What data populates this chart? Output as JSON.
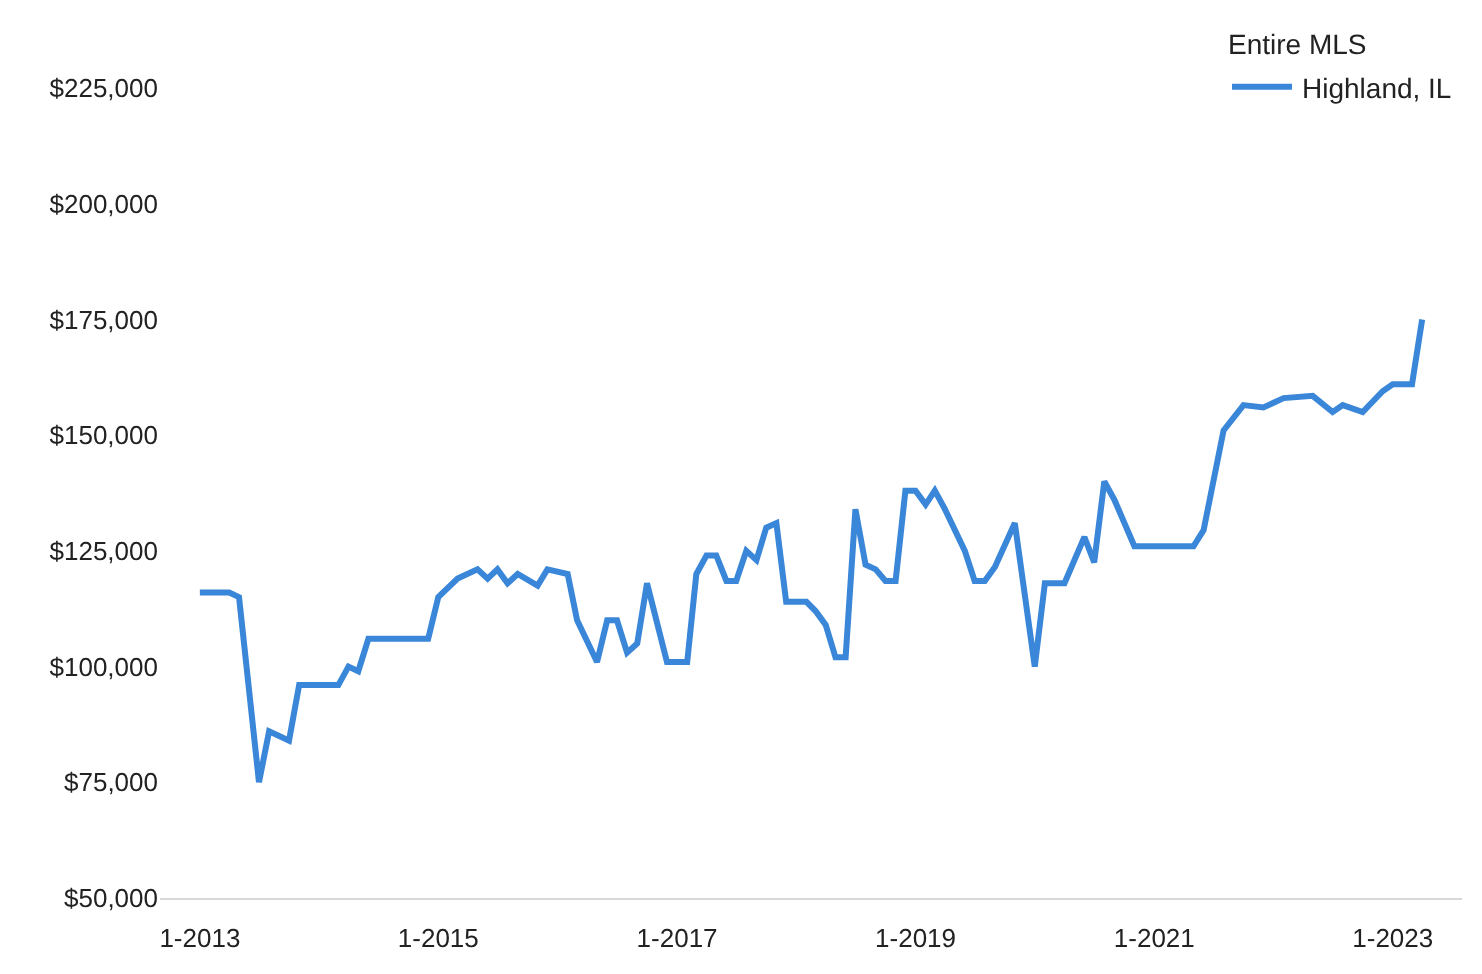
{
  "chart_data": {
    "type": "line",
    "annotations": [
      "Entire MLS"
    ],
    "x": [
      "2013-01",
      "2013-04",
      "2013-05",
      "2013-07",
      "2013-08",
      "2013-09",
      "2013-10",
      "2013-11",
      "2014-03",
      "2014-04",
      "2014-05",
      "2014-06",
      "2014-12",
      "2015-01",
      "2015-03",
      "2015-05",
      "2015-06",
      "2015-07",
      "2015-08",
      "2015-09",
      "2015-11",
      "2015-12",
      "2016-02",
      "2016-03",
      "2016-05",
      "2016-06",
      "2016-07",
      "2016-08",
      "2016-09",
      "2016-10",
      "2016-12",
      "2017-02",
      "2017-03",
      "2017-04",
      "2017-05",
      "2017-06",
      "2017-07",
      "2017-08",
      "2017-09",
      "2017-10",
      "2017-11",
      "2017-12",
      "2018-02",
      "2018-03",
      "2018-04",
      "2018-05",
      "2018-06",
      "2018-07",
      "2018-08",
      "2018-09",
      "2018-10",
      "2018-11",
      "2018-12",
      "2019-01",
      "2019-02",
      "2019-03",
      "2019-04",
      "2019-06",
      "2019-07",
      "2019-08",
      "2019-09",
      "2019-11",
      "2020-01",
      "2020-02",
      "2020-04",
      "2020-06",
      "2020-07",
      "2020-08",
      "2020-09",
      "2020-11",
      "2021-05",
      "2021-06",
      "2021-08",
      "2021-10",
      "2021-12",
      "2022-02",
      "2022-05",
      "2022-07",
      "2022-08",
      "2022-10",
      "2022-12",
      "2023-01",
      "2023-03",
      "2023-04"
    ],
    "series": [
      {
        "name": "Highland, IL",
        "color": "#3a86d8",
        "values": [
          116000,
          116000,
          115000,
          75000,
          86000,
          85000,
          84000,
          96000,
          96000,
          100000,
          99000,
          106000,
          106000,
          115000,
          119000,
          121000,
          119000,
          121000,
          118000,
          120000,
          117500,
          121000,
          120000,
          110000,
          101000,
          110000,
          110000,
          103000,
          105000,
          118000,
          101000,
          101000,
          120000,
          124000,
          124000,
          118500,
          118500,
          125000,
          123000,
          130000,
          131000,
          114000,
          114000,
          112000,
          109000,
          102000,
          102000,
          134000,
          122000,
          121000,
          118500,
          118500,
          138000,
          138000,
          135000,
          138000,
          134000,
          125000,
          118500,
          118500,
          121500,
          131000,
          100000,
          118000,
          118000,
          128000,
          122500,
          140000,
          136000,
          126000,
          126000,
          129500,
          151000,
          156500,
          156000,
          158000,
          158500,
          155000,
          156500,
          155000,
          159500,
          161000,
          161000,
          175000
        ]
      }
    ],
    "xlim": [
      "2012-09",
      "2023-08"
    ],
    "xticks": [
      {
        "value": "2013-01",
        "label": "1-2013"
      },
      {
        "value": "2015-01",
        "label": "1-2015"
      },
      {
        "value": "2017-01",
        "label": "1-2017"
      },
      {
        "value": "2019-01",
        "label": "1-2019"
      },
      {
        "value": "2021-01",
        "label": "1-2021"
      },
      {
        "value": "2023-01",
        "label": "1-2023"
      }
    ],
    "ylim": [
      50000,
      225000
    ],
    "yticks": [
      {
        "value": 50000,
        "label": "$50,000"
      },
      {
        "value": 75000,
        "label": "$75,000"
      },
      {
        "value": 100000,
        "label": "$100,000"
      },
      {
        "value": 125000,
        "label": "$125,000"
      },
      {
        "value": 150000,
        "label": "$150,000"
      },
      {
        "value": 175000,
        "label": "$175,000"
      },
      {
        "value": 200000,
        "label": "$200,000"
      },
      {
        "value": 225000,
        "label": "$225,000"
      }
    ],
    "legend": "top right",
    "marker": "none",
    "line_style": "solid"
  }
}
